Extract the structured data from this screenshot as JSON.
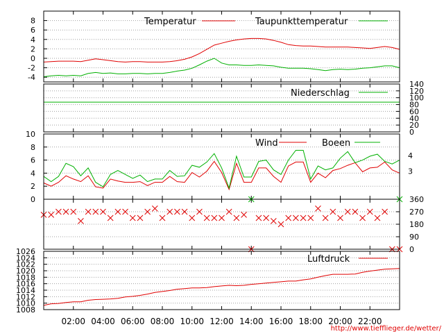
{
  "source_url": "http://www.tiefflieger.de/wetter/",
  "colors": {
    "red": "#e00000",
    "green": "#00b000",
    "grid": "#a0a0a0",
    "frame": "#000000"
  },
  "x_axis": {
    "range_hours": [
      0,
      24
    ],
    "ticks": [
      2,
      4,
      6,
      8,
      10,
      12,
      14,
      16,
      18,
      20,
      22
    ],
    "tick_labels": [
      "02:00",
      "04:00",
      "06:00",
      "08:00",
      "10:00",
      "12:00",
      "14:00",
      "16:00",
      "18:00",
      "20:00",
      "22:00"
    ]
  },
  "chart_data": [
    {
      "type": "line",
      "title": "",
      "xlabel": "",
      "ylabel": "",
      "ylim": [
        -5,
        10
      ],
      "yticks": [
        -4,
        -2,
        0,
        2,
        4,
        6,
        8
      ],
      "ytick_labels": [
        "-4",
        "-2",
        "0",
        "2",
        "4",
        "6",
        "8"
      ],
      "grid": true,
      "legend_placement": "top",
      "series": [
        {
          "name": "Temperatur",
          "color": "red",
          "x": [
            0,
            0.5,
            1,
            1.5,
            2,
            2.5,
            3,
            3.5,
            4,
            4.5,
            5,
            5.5,
            6,
            6.5,
            7,
            7.5,
            8,
            8.5,
            9,
            9.5,
            10,
            10.5,
            11,
            11.5,
            12,
            12.5,
            13,
            13.5,
            14,
            14.5,
            15,
            15.5,
            16,
            16.5,
            17,
            17.5,
            18,
            18.5,
            19,
            19.5,
            20,
            20.5,
            21,
            21.5,
            22,
            22.5,
            23,
            23.5,
            24
          ],
          "values": [
            -0.8,
            -0.7,
            -0.6,
            -0.6,
            -0.6,
            -0.7,
            -0.4,
            -0.1,
            -0.3,
            -0.5,
            -0.7,
            -0.8,
            -0.7,
            -0.7,
            -0.8,
            -0.8,
            -0.8,
            -0.7,
            -0.5,
            -0.2,
            0.3,
            1.0,
            1.9,
            2.8,
            3.2,
            3.6,
            3.9,
            4.1,
            4.2,
            4.2,
            4.1,
            3.8,
            3.4,
            2.9,
            2.7,
            2.6,
            2.6,
            2.5,
            2.4,
            2.4,
            2.4,
            2.4,
            2.3,
            2.2,
            2.1,
            2.3,
            2.5,
            2.3,
            1.9
          ]
        },
        {
          "name": "Taupunkttemperatur",
          "color": "green",
          "x": [
            0,
            0.5,
            1,
            1.5,
            2,
            2.5,
            3,
            3.5,
            4,
            4.5,
            5,
            5.5,
            6,
            6.5,
            7,
            7.5,
            8,
            8.5,
            9,
            9.5,
            10,
            10.5,
            11,
            11.5,
            12,
            12.5,
            13,
            13.5,
            14,
            14.5,
            15,
            15.5,
            16,
            16.5,
            17,
            17.5,
            18,
            18.5,
            19,
            19.5,
            20,
            20.5,
            21,
            21.5,
            22,
            22.5,
            23,
            23.5,
            24
          ],
          "values": [
            -3.9,
            -3.7,
            -3.6,
            -3.7,
            -3.6,
            -3.7,
            -3.2,
            -3.0,
            -3.2,
            -3.1,
            -3.3,
            -3.3,
            -3.2,
            -3.2,
            -3.3,
            -3.2,
            -3.2,
            -3.0,
            -2.7,
            -2.5,
            -2.1,
            -1.4,
            -0.6,
            0.0,
            -1.0,
            -1.4,
            -1.4,
            -1.5,
            -1.5,
            -1.4,
            -1.5,
            -1.6,
            -1.9,
            -2.1,
            -2.1,
            -2.1,
            -2.2,
            -2.4,
            -2.6,
            -2.4,
            -2.3,
            -2.4,
            -2.3,
            -2.1,
            -2.0,
            -1.8,
            -1.6,
            -1.6,
            -2.0
          ]
        }
      ]
    },
    {
      "type": "line",
      "title": "",
      "xlabel": "",
      "ylabel": "",
      "ylim": [
        0,
        140
      ],
      "yticks": [
        0,
        20,
        40,
        60,
        80,
        100,
        120,
        140
      ],
      "ytick_labels": [
        "0",
        "20",
        "40",
        "60",
        "80",
        "100",
        "120",
        "140"
      ],
      "y_axis_side": "right",
      "grid": true,
      "series": [
        {
          "name": "Niederschlag",
          "color": "green",
          "x": [
            0,
            24
          ],
          "values": [
            87,
            87
          ]
        }
      ]
    },
    {
      "type": "line",
      "title": "",
      "xlabel": "",
      "ylabel": "",
      "ylim": [
        0,
        10
      ],
      "yticks": [
        0,
        2,
        4,
        6,
        8,
        10
      ],
      "ytick_labels": [
        "0",
        "2",
        "4",
        "6",
        "8",
        "10"
      ],
      "right_labels": [
        {
          "label": "4",
          "value": 6.7
        },
        {
          "label": "3",
          "value": 4.3
        }
      ],
      "grid": true,
      "series": [
        {
          "name": "Wind",
          "color": "red",
          "x": [
            0,
            0.5,
            1,
            1.5,
            2,
            2.5,
            3,
            3.5,
            4,
            4.5,
            5,
            5.5,
            6,
            6.5,
            7,
            7.5,
            8,
            8.5,
            9,
            9.5,
            10,
            10.5,
            11,
            11.5,
            12,
            12.5,
            13,
            13.5,
            14,
            14.5,
            15,
            15.5,
            16,
            16.5,
            17,
            17.5,
            18,
            18.5,
            19,
            19.5,
            20,
            20.5,
            21,
            21.5,
            22,
            22.5,
            23,
            23.5,
            24
          ],
          "values": [
            2.5,
            2.0,
            2.6,
            3.6,
            3.1,
            2.7,
            3.6,
            1.9,
            1.7,
            3.1,
            2.8,
            2.6,
            2.6,
            2.7,
            2.1,
            2.6,
            2.6,
            3.5,
            2.7,
            2.6,
            4.1,
            3.4,
            4.3,
            5.8,
            4.1,
            1.5,
            5.5,
            2.6,
            2.6,
            4.8,
            4.8,
            3.5,
            2.6,
            5.1,
            5.7,
            5.7,
            2.6,
            4.0,
            3.3,
            4.4,
            4.7,
            5.2,
            5.6,
            4.2,
            4.8,
            4.9,
            5.7,
            4.5,
            4.0
          ]
        },
        {
          "name": "Boeen",
          "color": "green",
          "x": [
            0,
            0.5,
            1,
            1.5,
            2,
            2.5,
            3,
            3.5,
            4,
            4.5,
            5,
            5.5,
            6,
            6.5,
            7,
            7.5,
            8,
            8.5,
            9,
            9.5,
            10,
            10.5,
            11,
            11.5,
            12,
            12.5,
            13,
            13.5,
            14,
            14.5,
            15,
            15.5,
            16,
            16.5,
            17,
            17.5,
            18,
            18.5,
            19,
            19.5,
            20,
            20.5,
            21,
            21.5,
            22,
            22.5,
            23,
            23.5,
            24
          ],
          "values": [
            3.5,
            2.7,
            3.5,
            5.5,
            5.0,
            3.6,
            4.8,
            2.6,
            1.9,
            3.8,
            4.4,
            3.8,
            3.2,
            3.7,
            2.7,
            3.1,
            3.1,
            4.4,
            3.5,
            3.6,
            5.2,
            4.9,
            5.7,
            7.0,
            4.8,
            1.7,
            6.6,
            3.4,
            3.4,
            5.8,
            6.0,
            4.5,
            3.8,
            6.0,
            7.5,
            7.5,
            3.1,
            5.1,
            4.5,
            4.8,
            6.3,
            7.3,
            5.6,
            6.0,
            6.6,
            6.9,
            5.8,
            5.4,
            6.0
          ]
        }
      ]
    },
    {
      "type": "scatter",
      "title": "",
      "xlabel": "",
      "ylabel": "",
      "ylim": [
        0,
        360
      ],
      "yticks": [
        0,
        90,
        180,
        270,
        360
      ],
      "ytick_labels": [
        "0",
        "90",
        "180",
        "270",
        "360"
      ],
      "y_axis_side": "right",
      "grid": true,
      "series": [
        {
          "name": "",
          "color": "red",
          "marker": "x",
          "x": [
            0,
            0.5,
            1,
            1.5,
            2,
            2.5,
            3,
            3.5,
            4,
            4.5,
            5,
            5.5,
            6,
            6.5,
            7,
            7.5,
            8,
            8.5,
            9,
            9.5,
            10,
            10.5,
            11,
            11.5,
            12,
            12.5,
            13,
            13.5,
            14,
            14.5,
            15,
            15.5,
            16,
            16.5,
            17,
            17.5,
            18,
            18.5,
            19,
            19.5,
            20,
            20.5,
            21,
            21.5,
            22,
            22.5,
            23,
            23.5,
            24
          ],
          "values": [
            248,
            248,
            270,
            270,
            270,
            203,
            270,
            270,
            270,
            225,
            270,
            270,
            225,
            225,
            270,
            293,
            225,
            270,
            270,
            270,
            225,
            270,
            225,
            225,
            225,
            270,
            225,
            248,
            0,
            225,
            225,
            203,
            180,
            225,
            225,
            225,
            225,
            293,
            225,
            270,
            225,
            270,
            270,
            225,
            270,
            225,
            270,
            0,
            0
          ]
        },
        {
          "name": "",
          "color": "green",
          "marker": "x",
          "x": [
            14,
            24
          ],
          "values": [
            360,
            360
          ]
        }
      ]
    },
    {
      "type": "line",
      "title": "",
      "xlabel": "",
      "ylabel": "",
      "ylim": [
        1008,
        1026
      ],
      "yticks": [
        1008,
        1010,
        1012,
        1014,
        1016,
        1018,
        1020,
        1022,
        1024,
        1026
      ],
      "ytick_labels": [
        "1008",
        "1010",
        "1012",
        "1014",
        "1016",
        "1018",
        "1020",
        "1022",
        "1024",
        "1026"
      ],
      "grid": true,
      "series": [
        {
          "name": "Luftdruck",
          "color": "red",
          "x": [
            0,
            0.5,
            1,
            1.5,
            2,
            2.5,
            3,
            3.5,
            4,
            4.5,
            5,
            5.5,
            6,
            6.5,
            7,
            7.5,
            8,
            8.5,
            9,
            9.5,
            10,
            10.5,
            11,
            11.5,
            12,
            12.5,
            13,
            13.5,
            14,
            14.5,
            15,
            15.5,
            16,
            16.5,
            17,
            17.5,
            18,
            18.5,
            19,
            19.5,
            20,
            20.5,
            21,
            21.5,
            22,
            22.5,
            23,
            23.5,
            24
          ],
          "values": [
            1009.3,
            1009.8,
            1009.9,
            1010.2,
            1010.4,
            1010.4,
            1010.9,
            1011.1,
            1011.2,
            1011.3,
            1011.5,
            1011.9,
            1012.1,
            1012.4,
            1012.8,
            1013.3,
            1013.6,
            1013.9,
            1014.3,
            1014.5,
            1014.7,
            1014.7,
            1014.8,
            1015.1,
            1015.3,
            1015.5,
            1015.4,
            1015.5,
            1015.8,
            1016.0,
            1016.2,
            1016.4,
            1016.6,
            1016.8,
            1016.8,
            1017.2,
            1017.5,
            1018.0,
            1018.5,
            1018.9,
            1018.9,
            1018.9,
            1019.0,
            1019.5,
            1019.9,
            1020.2,
            1020.5,
            1020.6,
            1020.7
          ]
        }
      ]
    }
  ]
}
